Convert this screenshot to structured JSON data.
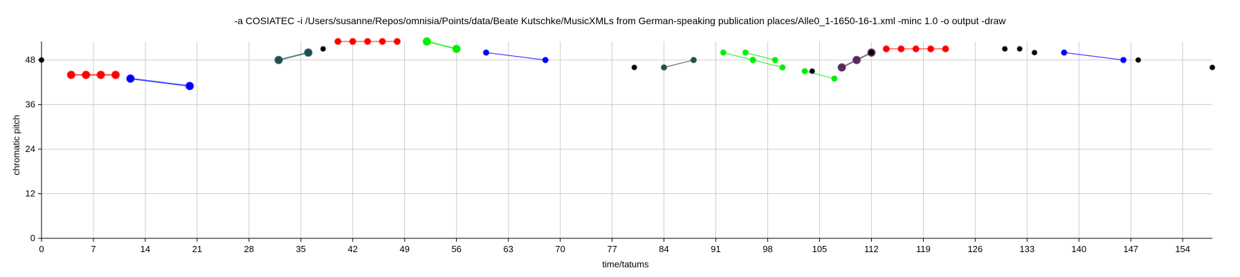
{
  "chart_data": {
    "type": "scatter",
    "title": "-a COSIATEC -i /Users/susanne/Repos/omnisia/Points/data/Beate Kutschke/MusicXMLs from German-speaking publication places/Alle0_1-1650-16-1.xml -minc 1.0 -o output -draw",
    "xlabel": "time/tatums",
    "ylabel": "chromatic pitch",
    "xlim": [
      0,
      158
    ],
    "ylim": [
      0,
      53
    ],
    "x_ticks": [
      0,
      7,
      14,
      21,
      28,
      35,
      42,
      49,
      56,
      63,
      70,
      77,
      84,
      91,
      98,
      105,
      112,
      119,
      126,
      133,
      140,
      147,
      154
    ],
    "y_ticks": [
      0,
      12,
      24,
      36,
      48
    ],
    "grid": true,
    "colors": {
      "red": "#ff0000",
      "blue": "#0000ff",
      "teal": "#1f5050",
      "green": "#00ee00",
      "purple": "#5a2a5a",
      "black": "#000000",
      "grid": "#cccccc"
    },
    "patterns": [
      {
        "color": "red",
        "size": "large",
        "points": [
          [
            4,
            44
          ],
          [
            6,
            44
          ],
          [
            8,
            44
          ],
          [
            10,
            44
          ]
        ]
      },
      {
        "color": "blue",
        "size": "large",
        "points": [
          [
            12,
            43
          ],
          [
            20,
            41
          ]
        ]
      },
      {
        "color": "teal",
        "size": "large",
        "points": [
          [
            32,
            48
          ],
          [
            36,
            50
          ]
        ]
      },
      {
        "color": "red",
        "size": "medium",
        "points": [
          [
            40,
            53
          ],
          [
            42,
            53
          ],
          [
            44,
            53
          ],
          [
            46,
            53
          ],
          [
            48,
            53
          ]
        ]
      },
      {
        "color": "green",
        "size": "large",
        "points": [
          [
            52,
            53
          ],
          [
            56,
            51
          ]
        ]
      },
      {
        "color": "blue",
        "size": "small",
        "points": [
          [
            60,
            50
          ],
          [
            68,
            48
          ]
        ]
      },
      {
        "color": "teal",
        "size": "small",
        "points": [
          [
            84,
            46
          ],
          [
            88,
            48
          ]
        ]
      },
      {
        "color": "green",
        "size": "small",
        "points": [
          [
            92,
            50
          ],
          [
            96,
            48
          ]
        ]
      },
      {
        "color": "green",
        "size": "small",
        "points": [
          [
            95,
            50
          ],
          [
            99,
            48
          ]
        ]
      },
      {
        "color": "green",
        "size": "small",
        "points": [
          [
            96,
            48
          ],
          [
            100,
            46
          ]
        ]
      },
      {
        "color": "green",
        "size": "small",
        "points": [
          [
            103,
            45
          ],
          [
            107,
            43
          ]
        ]
      },
      {
        "color": "purple",
        "size": "large",
        "points": [
          [
            108,
            46
          ],
          [
            110,
            48
          ],
          [
            112,
            50
          ]
        ]
      },
      {
        "color": "red",
        "size": "medium",
        "points": [
          [
            114,
            51
          ],
          [
            116,
            51
          ],
          [
            118,
            51
          ],
          [
            120,
            51
          ],
          [
            122,
            51
          ]
        ]
      },
      {
        "color": "blue",
        "size": "small",
        "points": [
          [
            138,
            50
          ],
          [
            146,
            48
          ]
        ]
      },
      {
        "color": "black",
        "size": "tiny",
        "points": [
          [
            0,
            48
          ]
        ]
      },
      {
        "color": "black",
        "size": "tiny",
        "points": [
          [
            38,
            51
          ]
        ]
      },
      {
        "color": "black",
        "size": "tiny",
        "points": [
          [
            80,
            46
          ]
        ]
      },
      {
        "color": "black",
        "size": "tiny",
        "points": [
          [
            104,
            45
          ]
        ]
      },
      {
        "color": "black",
        "size": "tiny",
        "points": [
          [
            112,
            50
          ]
        ]
      },
      {
        "color": "black",
        "size": "tiny",
        "points": [
          [
            130,
            51
          ]
        ]
      },
      {
        "color": "black",
        "size": "tiny",
        "points": [
          [
            132,
            51
          ]
        ]
      },
      {
        "color": "black",
        "size": "tiny",
        "points": [
          [
            134,
            50
          ]
        ]
      },
      {
        "color": "black",
        "size": "tiny",
        "points": [
          [
            148,
            48
          ]
        ]
      },
      {
        "color": "black",
        "size": "tiny",
        "points": [
          [
            158,
            46
          ]
        ]
      }
    ]
  }
}
